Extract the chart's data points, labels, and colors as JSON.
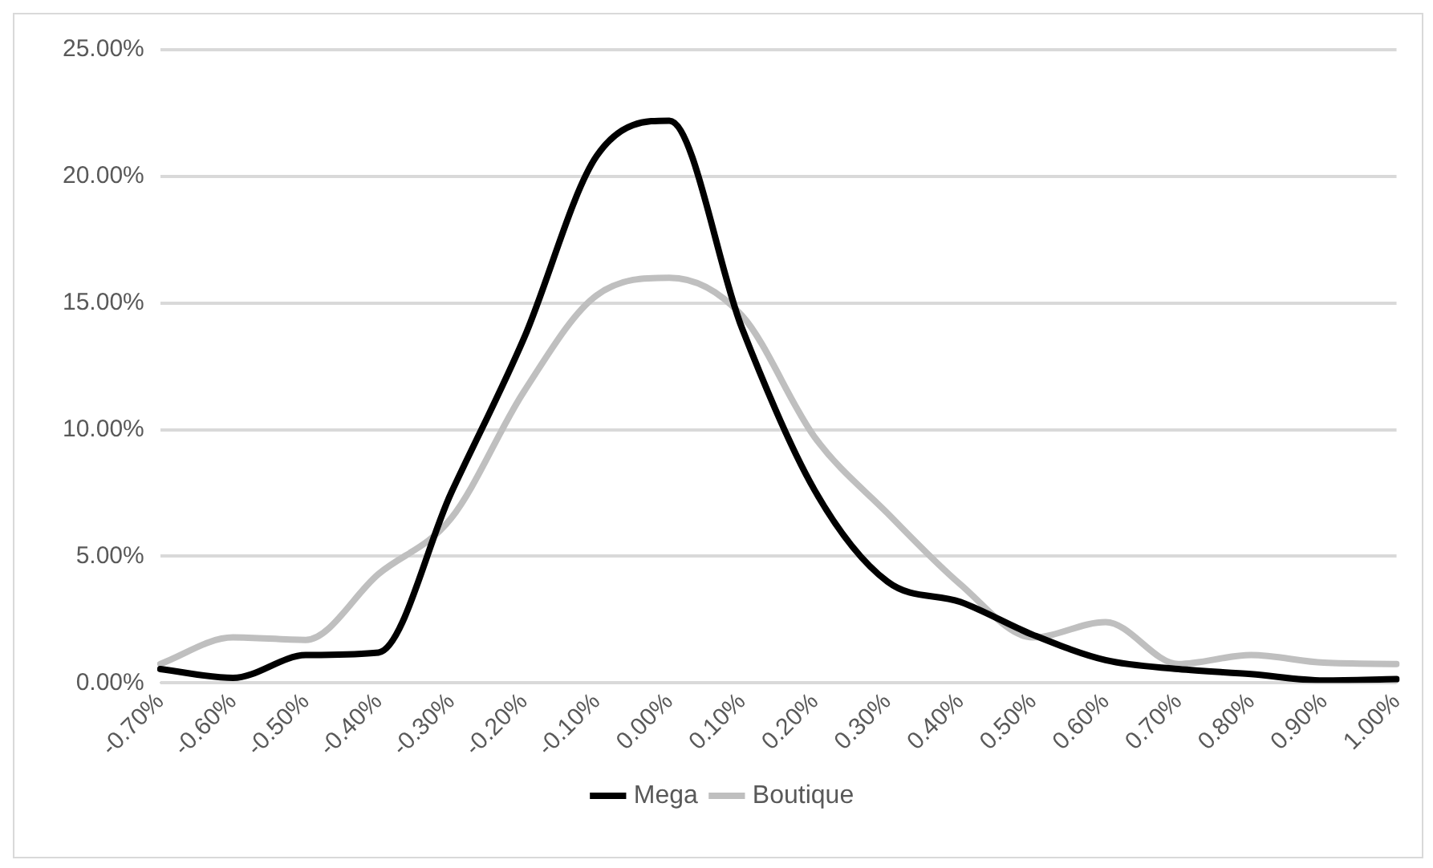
{
  "chart_data": {
    "type": "line",
    "categories": [
      "-0.70%",
      "-0.60%",
      "-0.50%",
      "-0.40%",
      "-0.30%",
      "-0.20%",
      "-0.10%",
      "0.00%",
      "0.10%",
      "0.20%",
      "0.30%",
      "0.40%",
      "0.50%",
      "0.60%",
      "0.70%",
      "0.80%",
      "0.90%",
      "1.00%"
    ],
    "series": [
      {
        "name": "Mega",
        "color": "#000000",
        "values": [
          0.55,
          0.2,
          1.1,
          1.2,
          7.5,
          13.6,
          20.8,
          22.2,
          14.0,
          7.6,
          4.0,
          3.2,
          1.9,
          0.9,
          0.55,
          0.35,
          0.1,
          0.15
        ]
      },
      {
        "name": "Boutique",
        "color": "#bfbfbf",
        "values": [
          0.75,
          1.8,
          1.7,
          4.3,
          6.5,
          11.5,
          15.3,
          16.0,
          14.5,
          9.7,
          6.7,
          3.9,
          1.8,
          2.4,
          0.75,
          1.1,
          0.8,
          0.75
        ]
      }
    ],
    "ylim": [
      0,
      25
    ],
    "yticks": [
      {
        "value": 0,
        "label": "0.00%"
      },
      {
        "value": 5,
        "label": "5.00%"
      },
      {
        "value": 10,
        "label": "10.00%"
      },
      {
        "value": 15,
        "label": "15.00%"
      },
      {
        "value": 20,
        "label": "20.00%"
      },
      {
        "value": 25,
        "label": "25.00%"
      }
    ],
    "grid": "y",
    "legend": "bottom",
    "marker": "none",
    "line_style": "solid"
  }
}
